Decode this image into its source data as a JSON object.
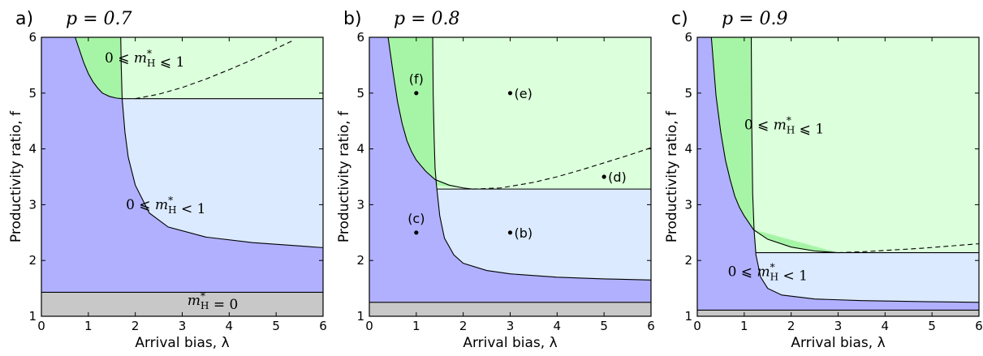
{
  "colors": {
    "blue": "#b0b0ff",
    "light_blue": "#dbeaff",
    "green": "#a6f5a6",
    "light_green": "#dcffdc",
    "gray": "#c8c8c8"
  },
  "chart_data": [
    {
      "type": "area",
      "panel_letter": "a)",
      "title": "p = 0.7",
      "xlabel": "Arrival bias, λ",
      "ylabel": "Productivity ratio, f",
      "xlim": [
        0,
        6
      ],
      "ylim": [
        1,
        6
      ],
      "xticks": [
        0,
        1,
        2,
        3,
        4,
        5,
        6
      ],
      "yticks": [
        1,
        2,
        3,
        4,
        5,
        6
      ],
      "boundaries": {
        "gray_line_f": 1.43,
        "flat_line_f": 4.9,
        "c2_f": [
          [
            0.72,
            6
          ],
          [
            0.8,
            5.8
          ],
          [
            0.9,
            5.55
          ],
          [
            1.0,
            5.35
          ],
          [
            1.1,
            5.2
          ],
          [
            1.2,
            5.09
          ],
          [
            1.3,
            5.0
          ],
          [
            1.45,
            4.94
          ],
          [
            1.6,
            4.91
          ],
          [
            1.72,
            4.9
          ]
        ],
        "c1_f": [
          [
            1.69,
            6
          ],
          [
            1.7,
            5.5
          ],
          [
            1.72,
            4.9
          ],
          [
            1.78,
            4.3
          ],
          [
            1.85,
            3.85
          ],
          [
            2.0,
            3.35
          ],
          [
            2.3,
            2.85
          ],
          [
            2.7,
            2.6
          ],
          [
            3.5,
            2.42
          ],
          [
            4.5,
            2.32
          ],
          [
            6.0,
            2.23
          ]
        ],
        "dashed_f": [
          [
            2.0,
            4.9
          ],
          [
            2.5,
            4.98
          ],
          [
            3.0,
            5.1
          ],
          [
            3.5,
            5.25
          ],
          [
            4.0,
            5.42
          ],
          [
            4.5,
            5.6
          ],
          [
            5.0,
            5.8
          ],
          [
            5.38,
            5.95
          ]
        ]
      },
      "annotations": [
        {
          "text": "0 ⩽ m*H ⩽ 1",
          "x": 2.2,
          "y": 5.55
        },
        {
          "text": "0 ⩽ m*H < 1",
          "x": 2.65,
          "y": 2.92
        },
        {
          "text": "m*H = 0",
          "x": 3.65,
          "y": 1.2
        }
      ],
      "points": []
    },
    {
      "type": "area",
      "panel_letter": "b)",
      "title": "p = 0.8",
      "xlabel": "Arrival bias, λ",
      "ylabel": "Productivity ratio, f",
      "xlim": [
        0,
        6
      ],
      "ylim": [
        1,
        6
      ],
      "xticks": [
        0,
        1,
        2,
        3,
        4,
        5,
        6
      ],
      "yticks": [
        1,
        2,
        3,
        4,
        5,
        6
      ],
      "boundaries": {
        "gray_line_f": 1.25,
        "flat_line_f": 3.28,
        "c2_f": [
          [
            0.4,
            6
          ],
          [
            0.5,
            5.4
          ],
          [
            0.6,
            4.85
          ],
          [
            0.7,
            4.45
          ],
          [
            0.8,
            4.15
          ],
          [
            0.9,
            3.95
          ],
          [
            1.0,
            3.8
          ],
          [
            1.2,
            3.6
          ],
          [
            1.4,
            3.45
          ],
          [
            1.7,
            3.35
          ],
          [
            2.0,
            3.3
          ],
          [
            2.2,
            3.28
          ]
        ],
        "c1_f": [
          [
            1.35,
            6
          ],
          [
            1.36,
            5.0
          ],
          [
            1.38,
            4.2
          ],
          [
            1.4,
            3.65
          ],
          [
            1.43,
            3.35
          ],
          [
            1.5,
            2.8
          ],
          [
            1.6,
            2.4
          ],
          [
            1.8,
            2.1
          ],
          [
            2.0,
            1.95
          ],
          [
            2.5,
            1.82
          ],
          [
            3.0,
            1.76
          ],
          [
            4.0,
            1.7
          ],
          [
            5.0,
            1.67
          ],
          [
            6.0,
            1.65
          ]
        ],
        "dashed_f": [
          [
            2.2,
            3.28
          ],
          [
            2.8,
            3.3
          ],
          [
            3.5,
            3.4
          ],
          [
            4.0,
            3.5
          ],
          [
            4.5,
            3.62
          ],
          [
            5.0,
            3.75
          ],
          [
            5.5,
            3.88
          ],
          [
            6.0,
            4.02
          ]
        ]
      },
      "annotations": [],
      "points": [
        {
          "label": "(f)",
          "x": 1,
          "y": 5,
          "label_pos": "above"
        },
        {
          "label": "(e)",
          "x": 3,
          "y": 5,
          "label_pos": "right"
        },
        {
          "label": "(d)",
          "x": 5,
          "y": 3.5,
          "label_pos": "right"
        },
        {
          "label": "(c)",
          "x": 1,
          "y": 2.5,
          "label_pos": "above"
        },
        {
          "label": "(b)",
          "x": 3,
          "y": 2.5,
          "label_pos": "right"
        }
      ]
    },
    {
      "type": "area",
      "panel_letter": "c)",
      "title": "p = 0.9",
      "xlabel": "Arrival bias, λ",
      "ylabel": "Productivity ratio, f",
      "xlim": [
        0,
        6
      ],
      "ylim": [
        1,
        6
      ],
      "xticks": [
        0,
        1,
        2,
        3,
        4,
        5,
        6
      ],
      "yticks": [
        1,
        2,
        3,
        4,
        5,
        6
      ],
      "boundaries": {
        "gray_line_f": 1.11,
        "flat_line_f": 2.14,
        "c2_f": [
          [
            0.3,
            6
          ],
          [
            0.4,
            4.95
          ],
          [
            0.5,
            4.3
          ],
          [
            0.6,
            3.8
          ],
          [
            0.7,
            3.45
          ],
          [
            0.8,
            3.15
          ],
          [
            0.9,
            2.95
          ],
          [
            1.0,
            2.8
          ],
          [
            1.2,
            2.55
          ],
          [
            1.5,
            2.38
          ],
          [
            2.0,
            2.24
          ],
          [
            2.5,
            2.17
          ],
          [
            3.0,
            2.14
          ]
        ],
        "c1_f": [
          [
            1.15,
            6
          ],
          [
            1.16,
            4.5
          ],
          [
            1.18,
            3.2
          ],
          [
            1.21,
            2.55
          ],
          [
            1.25,
            2.1
          ],
          [
            1.35,
            1.7
          ],
          [
            1.5,
            1.5
          ],
          [
            1.8,
            1.38
          ],
          [
            2.5,
            1.31
          ],
          [
            3.5,
            1.28
          ],
          [
            5.0,
            1.26
          ],
          [
            6.0,
            1.25
          ]
        ],
        "dashed_f": [
          [
            3.0,
            2.14
          ],
          [
            3.6,
            2.16
          ],
          [
            4.2,
            2.19
          ],
          [
            4.8,
            2.22
          ],
          [
            5.4,
            2.26
          ],
          [
            6.0,
            2.3
          ]
        ]
      },
      "annotations": [
        {
          "text": "0 ⩽ m*H ⩽ 1",
          "x": 1.85,
          "y": 4.35
        },
        {
          "text": "0 ⩽ m*H < 1",
          "x": 1.5,
          "y": 1.72
        }
      ],
      "points": []
    }
  ]
}
